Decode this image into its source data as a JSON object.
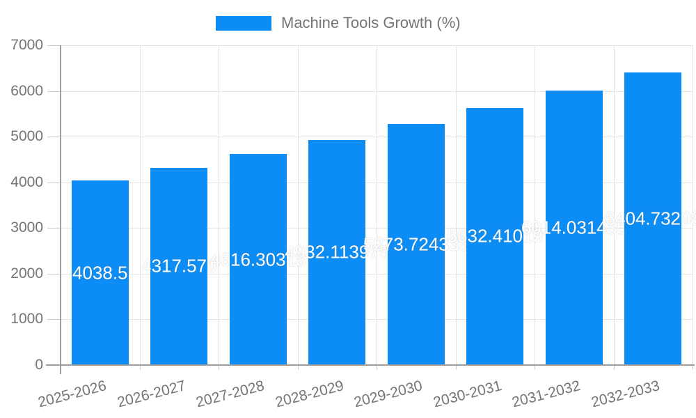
{
  "legend": {
    "label": "Machine Tools Growth (%)"
  },
  "chart_data": {
    "type": "bar",
    "title": "Machine Tools Growth (%)",
    "categories": [
      "2025-2026",
      "2026-2027",
      "2027-2028",
      "2028-2029",
      "2029-2030",
      "2030-2031",
      "2031-2032",
      "2032-2033"
    ],
    "series": [
      {
        "name": "Machine Tools Growth (%)",
        "values": [
          4038.5,
          4317.579,
          4616.30318,
          4932.113975,
          5273.724335,
          5632.41019,
          6014.031435,
          6404.73298
        ],
        "data_labels": [
          "4038.5",
          "4317.579",
          "4616.30318",
          "4932.113975",
          "5273.724335",
          "5632.41019",
          "6014.031435",
          "6404.73298"
        ]
      }
    ],
    "xlabel": "",
    "ylabel": "",
    "ylim": [
      0,
      7000
    ],
    "yticks": [
      0,
      1000,
      2000,
      3000,
      4000,
      5000,
      6000,
      7000
    ],
    "grid": true,
    "legend_position": "top",
    "bar_color": "#0c8df5",
    "data_label_color": "#ffffff"
  },
  "colors": {
    "bar": "#0c8df5",
    "axis_text": "#757575",
    "grid_line": "#e3e3e3",
    "tick_line": "#c9c9c9",
    "axis_line": "#9e9e9e",
    "background": "#ffffff"
  }
}
